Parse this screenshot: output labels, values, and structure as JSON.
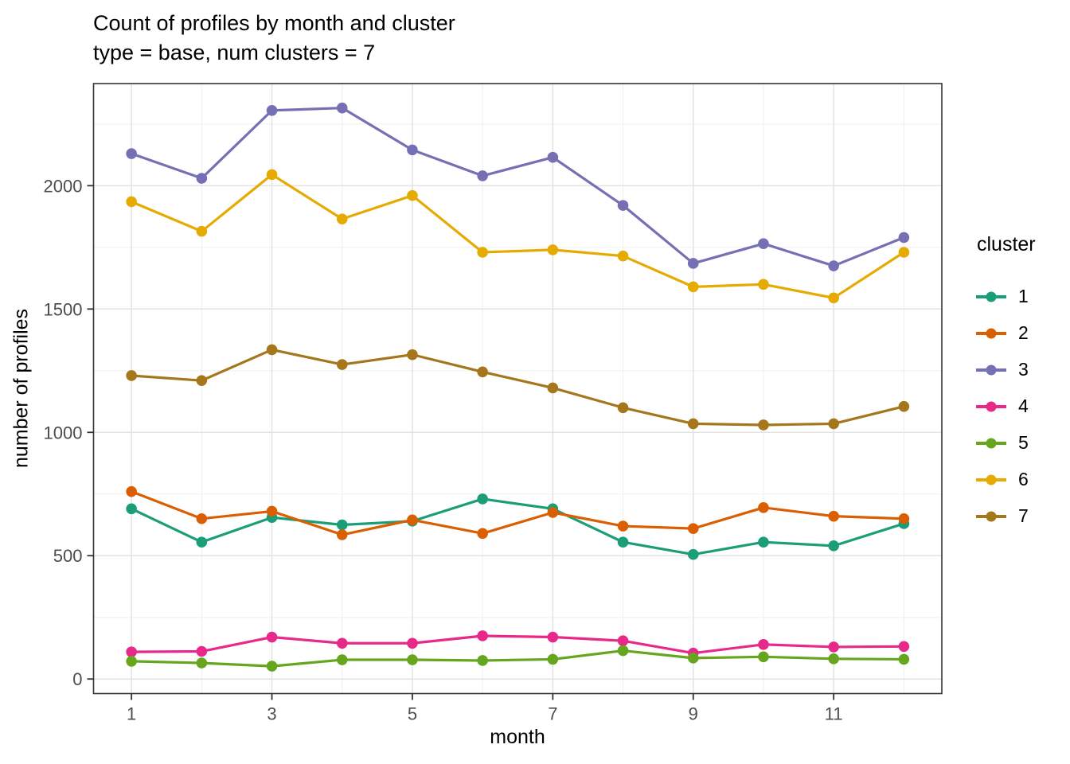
{
  "title": "Count of profiles by month and cluster",
  "subtitle": "type = base, num clusters = 7",
  "chart_data": {
    "type": "line",
    "title": "Count of profiles by month and cluster",
    "subtitle": "type = base, num clusters = 7",
    "xlabel": "month",
    "ylabel": "number of profiles",
    "legend_title": "cluster",
    "legend_position": "right",
    "grid": "major+minor",
    "x": [
      1,
      2,
      3,
      4,
      5,
      6,
      7,
      8,
      9,
      10,
      11,
      12
    ],
    "x_major_ticks": [
      1,
      3,
      5,
      7,
      9,
      11
    ],
    "x_minor_gridlines": [
      2,
      4,
      6,
      8,
      10,
      12
    ],
    "y_major_ticks": [
      0,
      500,
      1000,
      1500,
      2000
    ],
    "y_minor_gridlines": [
      250,
      750,
      1250,
      1750,
      2250
    ],
    "xlim": [
      0.46,
      12.54
    ],
    "ylim": [
      -59,
      2414
    ],
    "series": [
      {
        "name": "1",
        "color": "#1B9E77",
        "values": [
          690,
          555,
          655,
          625,
          640,
          730,
          690,
          555,
          505,
          555,
          540,
          630
        ]
      },
      {
        "name": "2",
        "color": "#D95F02",
        "values": [
          760,
          650,
          680,
          585,
          645,
          590,
          675,
          620,
          610,
          695,
          660,
          650
        ]
      },
      {
        "name": "3",
        "color": "#7570B3",
        "values": [
          2130,
          2030,
          2305,
          2315,
          2145,
          2040,
          2115,
          1920,
          1685,
          1765,
          1675,
          1790
        ]
      },
      {
        "name": "4",
        "color": "#E7298A",
        "values": [
          110,
          112,
          170,
          145,
          145,
          175,
          170,
          155,
          105,
          140,
          130,
          132
        ]
      },
      {
        "name": "5",
        "color": "#66A61E",
        "values": [
          72,
          65,
          52,
          78,
          78,
          75,
          80,
          115,
          85,
          90,
          82,
          80
        ]
      },
      {
        "name": "6",
        "color": "#E6AB02",
        "values": [
          1935,
          1815,
          2045,
          1865,
          1960,
          1730,
          1740,
          1715,
          1590,
          1600,
          1545,
          1730
        ]
      },
      {
        "name": "7",
        "color": "#A6761D",
        "values": [
          1230,
          1210,
          1335,
          1275,
          1315,
          1245,
          1180,
          1100,
          1035,
          1030,
          1035,
          1105
        ]
      }
    ]
  },
  "style": {
    "panel_border": "#333333",
    "grid_major": "#E3E3E3",
    "grid_minor": "#F0F0F0",
    "tick_mark": "#333333",
    "tick_label": "#4D4D4D",
    "background": "#FFFFFF"
  }
}
